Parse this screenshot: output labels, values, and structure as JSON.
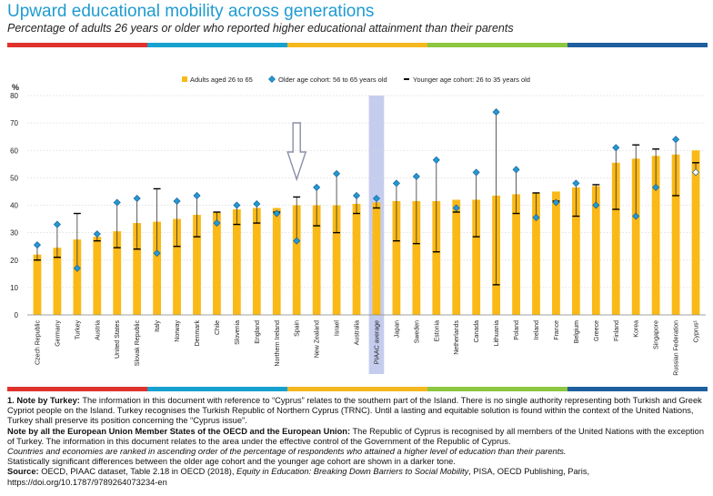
{
  "title": "Upward educational mobility across generations",
  "subtitle": "Percentage of adults 26 years or older who reported higher educational attainment than their parents",
  "colors": {
    "bar": "#fbb917",
    "highlight": "#c5cdee",
    "title": "#1f9bd1",
    "stripe": [
      "#e0322c",
      "#16a1cf",
      "#f5b71e",
      "#8dc63f",
      "#1f5f9e"
    ]
  },
  "notes": {
    "turkey_label": "1. Note by Turkey:",
    "turkey_text": " The information in this document with reference to “Cyprus” relates to the southern part of the Island. There is no single authority representing both Turkish and Greek Cypriot people on the Island. Turkey recognises the Turkish Republic of Northern Cyprus (TRNC). Until a lasting and equitable solution is found within the context of the United Nations, Turkey shall preserve its position concerning the “Cyprus issue”.",
    "eu_label": "Note by all the European Union Member States of the OECD and the European Union:",
    "eu_text": " The Republic of Cyprus is recognised by all members of the United Nations with the exception of Turkey. The information in this document relates to the area under the effective control of the Government of the Republic of Cyprus.",
    "ranking": "Countries and economies are ranked in ascending order of the percentage of respondents who attained a higher level of education than their parents.",
    "significance": "Statistically significant differences between the older age cohort and the younger age cohort are shown in a darker tone.",
    "source_label": "Source:",
    "source_pre": " OECD, PIAAC dataset, Table 2.18 in OECD (2018), ",
    "source_italic": "Equity in Education: Breaking Down Barriers to Social Mobility",
    "source_post": ", PISA, OECD Publishing, Paris,",
    "source_url": "https://doi.org/10.1787/9789264073234-en"
  },
  "chart_data": {
    "type": "bar",
    "ylabel": "%",
    "ylim": [
      0,
      80
    ],
    "yticks": [
      0,
      10,
      20,
      30,
      40,
      50,
      60,
      70,
      80
    ],
    "highlight_category": "PIAAC average",
    "legend": {
      "placement": "top",
      "adults": "Adults aged 26 to 65",
      "older": "Older age cohort: 56 to 65 years old",
      "younger": "Younger age cohort: 26 to 35 years old"
    },
    "categories": [
      "Czech Republic",
      "Germany",
      "Turkey",
      "Austria",
      "United States",
      "Slovak Republic",
      "Italy",
      "Norway",
      "Denmark",
      "Chile",
      "Slovenia",
      "England",
      "Northern Ireland",
      "Spain",
      "New Zealand",
      "Israel",
      "Australia",
      "PIAAC average",
      "Japan",
      "Sweden",
      "Estonia",
      "Netherlands",
      "Canada",
      "Lithuania",
      "Poland",
      "Ireland",
      "France",
      "Belgium",
      "Greece",
      "Finland",
      "Korea",
      "Singapore",
      "Russian Federation",
      "Cyprus¹"
    ],
    "series": [
      {
        "name": "Adults aged 26 to 65",
        "values": [
          22,
          24.5,
          27.5,
          28.5,
          30.5,
          33.5,
          34,
          35,
          36.5,
          37.5,
          38.5,
          39,
          39,
          40,
          40,
          40,
          40.5,
          41,
          41.5,
          41.5,
          41.5,
          42,
          42,
          43.5,
          44,
          44.5,
          45,
          46.5,
          47,
          55.5,
          57,
          58,
          58.5,
          60
        ]
      },
      {
        "name": "Older age cohort: 56 to 65 years old",
        "values": [
          25.5,
          33,
          17,
          29.5,
          41,
          42.5,
          22.5,
          41.5,
          43.5,
          33.5,
          40,
          40.5,
          37,
          27,
          46.5,
          51.5,
          43.5,
          42.5,
          48,
          50.5,
          56.5,
          39,
          52,
          74,
          53,
          35.5,
          41,
          48,
          40,
          61,
          36,
          46.5,
          64,
          52
        ]
      },
      {
        "name": "Younger age cohort: 26 to 35 years old",
        "values": [
          20,
          21,
          37,
          27,
          24.5,
          24,
          46,
          25,
          28.5,
          37.5,
          33,
          33.5,
          37.5,
          43,
          32.5,
          30,
          37,
          39,
          27,
          26,
          23,
          37.5,
          28.5,
          11,
          37,
          44.5,
          41.5,
          36,
          47.5,
          38.5,
          62,
          60.5,
          43.5,
          55.5
        ]
      }
    ]
  }
}
